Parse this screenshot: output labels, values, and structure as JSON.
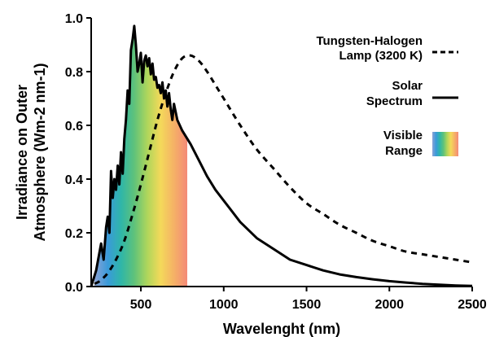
{
  "chart_data": {
    "type": "line",
    "xlabel": "Wavelenght (nm)",
    "ylabel_lines": [
      "Irradiance on Outer",
      "Atmosphere (Wm-2 nm-1)"
    ],
    "xlim": [
      200,
      2500
    ],
    "ylim": [
      0,
      1.0
    ],
    "x_ticks": [
      500,
      1000,
      1500,
      2000,
      2500
    ],
    "x_tick_labels": [
      "500",
      "1000",
      "1500",
      "2000",
      "2500"
    ],
    "y_ticks": [
      0,
      0.2,
      0.4,
      0.6,
      0.8,
      1.0
    ],
    "y_tick_labels": [
      "0.0",
      "0.2",
      "0.4",
      "0.6",
      "0.8",
      "1.0"
    ],
    "grid": false,
    "legend_position": "right",
    "series": [
      {
        "name_lines": [
          "Tungsten-Halogen",
          "Lamp (3200 K)"
        ],
        "style": "dashed",
        "color": "#000000",
        "x": [
          220,
          250,
          300,
          350,
          400,
          450,
          500,
          550,
          600,
          650,
          700,
          750,
          800,
          850,
          900,
          950,
          1000,
          1100,
          1200,
          1300,
          1400,
          1500,
          1600,
          1700,
          1800,
          1900,
          2000,
          2100,
          2200,
          2300,
          2400,
          2500
        ],
        "y": [
          0.01,
          0.02,
          0.05,
          0.1,
          0.17,
          0.27,
          0.38,
          0.5,
          0.62,
          0.72,
          0.8,
          0.85,
          0.86,
          0.84,
          0.8,
          0.75,
          0.7,
          0.6,
          0.51,
          0.44,
          0.37,
          0.31,
          0.27,
          0.23,
          0.2,
          0.17,
          0.15,
          0.13,
          0.12,
          0.11,
          0.1,
          0.09
        ]
      },
      {
        "name_lines": [
          "Solar",
          "Spectrum"
        ],
        "style": "solid",
        "color": "#000000",
        "x": [
          200,
          230,
          260,
          275,
          290,
          300,
          310,
          320,
          330,
          340,
          350,
          360,
          370,
          380,
          390,
          400,
          410,
          420,
          430,
          440,
          450,
          460,
          470,
          480,
          490,
          500,
          510,
          520,
          530,
          540,
          550,
          560,
          570,
          580,
          590,
          600,
          610,
          620,
          630,
          640,
          650,
          660,
          670,
          680,
          690,
          700,
          720,
          750,
          800,
          850,
          900,
          950,
          1000,
          1100,
          1200,
          1300,
          1400,
          1500,
          1600,
          1700,
          1800,
          1900,
          2000,
          2100,
          2200,
          2300,
          2400,
          2500
        ],
        "y": [
          0.0,
          0.06,
          0.16,
          0.1,
          0.22,
          0.26,
          0.2,
          0.43,
          0.33,
          0.4,
          0.36,
          0.45,
          0.38,
          0.5,
          0.42,
          0.55,
          0.62,
          0.73,
          0.68,
          0.88,
          0.92,
          0.97,
          0.9,
          0.8,
          0.83,
          0.87,
          0.76,
          0.84,
          0.86,
          0.82,
          0.85,
          0.79,
          0.83,
          0.77,
          0.78,
          0.74,
          0.75,
          0.72,
          0.76,
          0.7,
          0.73,
          0.67,
          0.72,
          0.66,
          0.62,
          0.68,
          0.62,
          0.58,
          0.53,
          0.47,
          0.41,
          0.36,
          0.32,
          0.24,
          0.18,
          0.14,
          0.1,
          0.08,
          0.06,
          0.045,
          0.035,
          0.027,
          0.02,
          0.015,
          0.01,
          0.007,
          0.004,
          0.002
        ]
      }
    ],
    "visible_range": {
      "name_lines": [
        "Visible",
        "Range"
      ],
      "x_range": [
        380,
        780
      ],
      "colors": [
        "#8aa3d6",
        "#3a9ad9",
        "#2fb6a8",
        "#5fc27a",
        "#b0d65b",
        "#f4d95a",
        "#f5b166",
        "#f48a78"
      ]
    }
  }
}
